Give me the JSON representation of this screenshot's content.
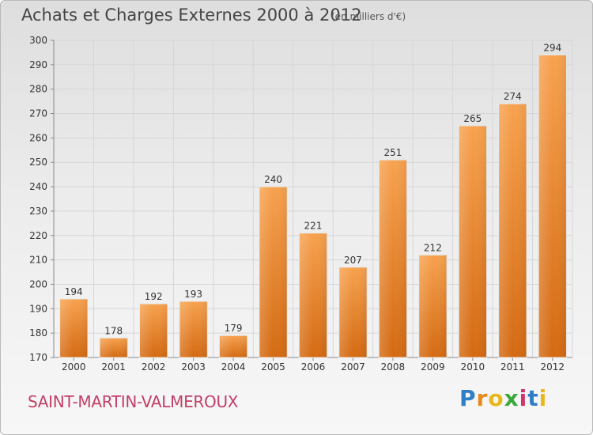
{
  "title": "Achats et Charges Externes 2000 à 2012",
  "subtitle": "(en milliers d'€)",
  "place": "SAINT-MARTIN-VALMEROUX",
  "brand": {
    "letters": [
      "P",
      "r",
      "o",
      "x",
      "i",
      "t",
      "i"
    ],
    "colors": [
      "#2f7fc8",
      "#e88a1a",
      "#e8b71a",
      "#3aa83a",
      "#d2336b",
      "#2f7fc8",
      "#e8b71a"
    ]
  },
  "chart_data": {
    "type": "bar",
    "title": "Achats et Charges Externes 2000 à 2012",
    "xlabel": "",
    "ylabel": "",
    "categories": [
      "2000",
      "2001",
      "2002",
      "2003",
      "2004",
      "2005",
      "2006",
      "2007",
      "2008",
      "2009",
      "2010",
      "2011",
      "2012"
    ],
    "values": [
      194,
      178,
      192,
      193,
      179,
      240,
      221,
      207,
      251,
      212,
      265,
      274,
      294
    ],
    "ylim": [
      170,
      300
    ],
    "yticks": [
      170,
      180,
      190,
      200,
      210,
      220,
      230,
      240,
      250,
      260,
      270,
      280,
      290,
      300
    ],
    "grid": true,
    "bar_color": "#f0923a"
  }
}
